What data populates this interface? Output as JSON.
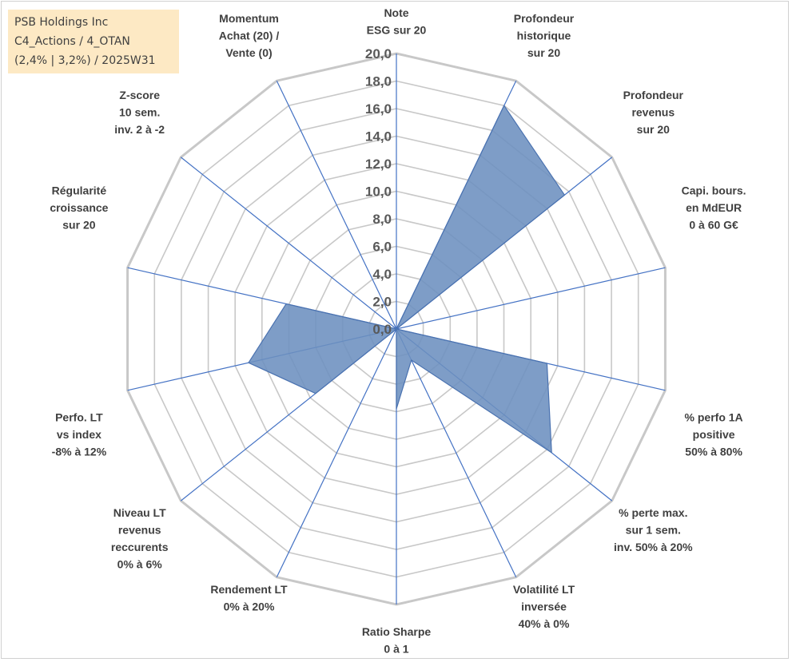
{
  "info": {
    "lines": [
      "PSB Holdings Inc",
      "C4_Actions / 4_OTAN",
      "(2,4% | 3,2%) / 2025W31"
    ]
  },
  "chart_data": {
    "type": "radar",
    "rmin": 0,
    "rmax": 20,
    "tick_step": 2,
    "tick_labels": [
      "0,0",
      "2,0",
      "4,0",
      "6,0",
      "8,0",
      "10,0",
      "12,0",
      "14,0",
      "16,0",
      "18,0",
      "20,0"
    ],
    "axes": [
      {
        "label": [
          "Note",
          "ESG sur 20"
        ],
        "value": 0
      },
      {
        "label": [
          "Profondeur",
          "historique",
          "sur 20"
        ],
        "value": 18.0
      },
      {
        "label": [
          "Profondeur",
          "revenus",
          "sur 20"
        ],
        "value": 15.6
      },
      {
        "label": [
          "Capi. bours.",
          "en MdEUR",
          "0 à 60 G€"
        ],
        "value": 0
      },
      {
        "label": [
          "% perfo 1A",
          "positive",
          "50% à 80%"
        ],
        "value": 11.2
      },
      {
        "label": [
          "% perte max.",
          "sur 1 sem.",
          "inv. 50% à 20%"
        ],
        "value": 14.4
      },
      {
        "label": [
          "Volatilité LT",
          "inversée",
          "40% à 0%"
        ],
        "value": 2.5
      },
      {
        "label": [
          "Ratio Sharpe",
          "0 à 1"
        ],
        "value": 5.8
      },
      {
        "label": [
          "Rendement LT",
          "0% à 20%"
        ],
        "value": 0
      },
      {
        "label": [
          "Niveau LT",
          "revenus",
          "reccurents",
          "0% à 6%"
        ],
        "value": 7.5
      },
      {
        "label": [
          "Perfo. LT",
          "vs index",
          "-8% à 12%"
        ],
        "value": 11.0
      },
      {
        "label": [
          "Régularité",
          "croissance",
          "sur 20"
        ],
        "value": 8.2
      },
      {
        "label": [
          "Z-score",
          "10 sem.",
          "inv. 2 à -2"
        ],
        "value": 0
      },
      {
        "label": [
          "Momentum",
          "Achat (20) /",
          "Vente (0)"
        ],
        "value": 0
      }
    ],
    "grid": true,
    "colors": {
      "fill": "#6c8fbf",
      "stroke": "#4a72b0",
      "spoke": "#4472c4",
      "grid": "#c8c8c8"
    }
  }
}
